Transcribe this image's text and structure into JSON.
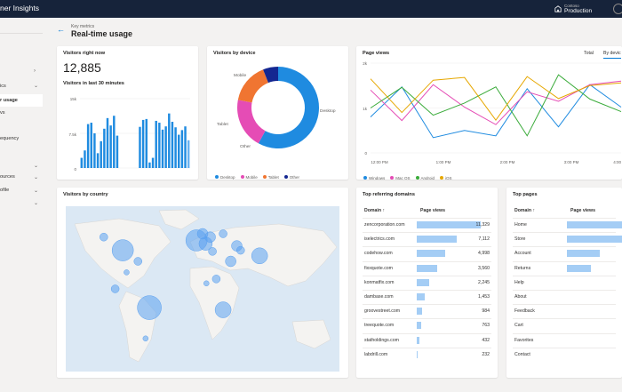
{
  "app": {
    "title": "ner Insights"
  },
  "environment": {
    "label": "Contoso",
    "value": "Production"
  },
  "sidebar": {
    "items": [
      {
        "label": ""
      },
      {
        "label": "ics"
      },
      {
        "label": "r usage"
      },
      {
        "label": "vs"
      },
      {
        "label": ""
      },
      {
        "label": "equency"
      },
      {
        "label": ""
      },
      {
        "label": ""
      },
      {
        "label": "ources"
      },
      {
        "label": "ofile"
      },
      {
        "label": ""
      }
    ]
  },
  "header": {
    "breadcrumb": "Key metrics",
    "title": "Real-time usage"
  },
  "visitors_now": {
    "title": "Visitors right now",
    "value": "12,885",
    "sub_title": "Visitors in last 30 minutes",
    "y_ticks": [
      "15k",
      "7.5k",
      "0"
    ]
  },
  "devices": {
    "title": "Visitors by device",
    "legend": [
      "Desktop",
      "Mobile",
      "Tablet",
      "Other"
    ],
    "slice_labels": [
      "Mobile",
      "Tablet",
      "Other",
      "Desktop"
    ]
  },
  "page_views": {
    "title": "Page views",
    "tabs": [
      "Total",
      "By devic"
    ],
    "y_ticks": [
      "2k",
      "1k",
      "0"
    ],
    "x_ticks": [
      "12:00 PM",
      "1:00 PM",
      "2:00 PM",
      "3:00 PM",
      "4:00"
    ],
    "legend": [
      "Windows",
      "Mac OS",
      "Android",
      "iOS"
    ]
  },
  "country": {
    "title": "Visitors by country"
  },
  "referring": {
    "title": "Top referring domains",
    "col_domain": "Domain",
    "col_views": "Page views",
    "rows": [
      {
        "domain": "zencorporation.com",
        "value": "11,329"
      },
      {
        "domain": "iselectrics.com",
        "value": "7,112"
      },
      {
        "domain": "codehow.com",
        "value": "4,998"
      },
      {
        "domain": "fixxquote.com",
        "value": "3,560"
      },
      {
        "domain": "konmatfix.com",
        "value": "2,245"
      },
      {
        "domain": "dambase.com",
        "value": "1,453"
      },
      {
        "domain": "groovestreet.com",
        "value": "984"
      },
      {
        "domain": "treequote.com",
        "value": "763"
      },
      {
        "domain": "statholdings.com",
        "value": "432"
      },
      {
        "domain": "labdrill.com",
        "value": "232"
      }
    ]
  },
  "top_pages": {
    "title": "Top pages",
    "col_domain": "Domain",
    "col_views": "Page views",
    "rows": [
      {
        "page": "Home"
      },
      {
        "page": "Store"
      },
      {
        "page": "Account"
      },
      {
        "page": "Returns"
      },
      {
        "page": "Help"
      },
      {
        "page": "About"
      },
      {
        "page": "Feedback"
      },
      {
        "page": "Cart"
      },
      {
        "page": "Favorites"
      },
      {
        "page": "Contact"
      }
    ]
  },
  "chart_data": [
    {
      "type": "bar",
      "title": "Visitors in last 30 minutes",
      "ylim": [
        0,
        15000
      ],
      "values": [
        2200,
        3800,
        9500,
        9800,
        7500,
        3200,
        5800,
        8500,
        10800,
        9200,
        11300,
        7000,
        0,
        0,
        0,
        0,
        0,
        0,
        8900,
        10400,
        10600,
        1200,
        2200,
        10200,
        9800,
        8300,
        9000,
        11800,
        10000,
        8800,
        7200,
        8200,
        9000,
        6000
      ],
      "last_bar_color": "#69b2f2"
    },
    {
      "type": "pie",
      "title": "Visitors by device",
      "labels": [
        "Desktop",
        "Mobile",
        "Tablet",
        "Other"
      ],
      "values": [
        58,
        20,
        16,
        6
      ],
      "colors": [
        "#1f8be0",
        "#e54cb5",
        "#f07531",
        "#142791"
      ]
    },
    {
      "type": "line",
      "title": "Page views",
      "ylim": [
        0,
        2000
      ],
      "x": [
        "12:00 PM",
        "12:30 PM",
        "1:00 PM",
        "1:30 PM",
        "2:00 PM",
        "2:30 PM",
        "3:00 PM",
        "3:30 PM",
        "4:00 PM"
      ],
      "series": [
        {
          "name": "Windows",
          "color": "#1f8be0",
          "values": [
            800,
            1470,
            340,
            500,
            380,
            1430,
            580,
            1520,
            1020
          ]
        },
        {
          "name": "Mac OS",
          "color": "#e54cb5",
          "values": [
            1400,
            720,
            1520,
            1020,
            630,
            1360,
            1150,
            1520,
            1600
          ]
        },
        {
          "name": "Android",
          "color": "#3aab3a",
          "values": [
            1000,
            1460,
            840,
            1110,
            1470,
            380,
            1740,
            1200,
            920
          ]
        },
        {
          "name": "iOS",
          "color": "#e6a700",
          "values": [
            1650,
            900,
            1620,
            1680,
            730,
            1700,
            1210,
            1500,
            1560
          ]
        }
      ]
    },
    {
      "type": "bar",
      "title": "Top referring domains",
      "categories": [
        "zencorporation.com",
        "iselectrics.com",
        "codehow.com",
        "fixxquote.com",
        "konmatfix.com",
        "dambase.com",
        "groovestreet.com",
        "treequote.com",
        "statholdings.com",
        "labdrill.com"
      ],
      "values": [
        11329,
        7112,
        4998,
        3560,
        2245,
        1453,
        984,
        763,
        432,
        232
      ]
    },
    {
      "type": "bar",
      "title": "Top pages",
      "categories": [
        "Home",
        "Store",
        "Account",
        "Returns",
        "Help",
        "About",
        "Feedback",
        "Cart",
        "Favorites",
        "Contact"
      ],
      "values": [
        100,
        88,
        52,
        38,
        0,
        0,
        0,
        0,
        0,
        0
      ]
    }
  ],
  "map_bubbles": [
    {
      "lon": -95,
      "lat": 40,
      "size": 4
    },
    {
      "lon": -60,
      "lat": -12,
      "size": 4.5
    },
    {
      "lon": 2,
      "lat": 49,
      "size": 4
    },
    {
      "lon": 14,
      "lat": 46,
      "size": 2.5
    },
    {
      "lon": 10,
      "lat": 55,
      "size": 2
    },
    {
      "lon": 20,
      "lat": 52,
      "size": 2
    },
    {
      "lon": 37,
      "lat": 55,
      "size": 1.5
    },
    {
      "lon": 47,
      "lat": 30,
      "size": 2
    },
    {
      "lon": 23,
      "lat": 39,
      "size": 1.5
    },
    {
      "lon": 28,
      "lat": 14,
      "size": 1.5
    },
    {
      "lon": 37,
      "lat": -14,
      "size": 3
    },
    {
      "lon": 55,
      "lat": 44,
      "size": 2
    },
    {
      "lon": 85,
      "lat": 35,
      "size": 3
    },
    {
      "lon": 60,
      "lat": 40,
      "size": 1.5
    },
    {
      "lon": -120,
      "lat": 52,
      "size": 1.5
    },
    {
      "lon": -75,
      "lat": 30,
      "size": 1.5
    },
    {
      "lon": -90,
      "lat": 20,
      "size": 1
    },
    {
      "lon": -105,
      "lat": 5,
      "size": 1.5
    },
    {
      "lon": -65,
      "lat": -40,
      "size": 1
    },
    {
      "lon": 15,
      "lat": 10,
      "size": 1
    }
  ]
}
